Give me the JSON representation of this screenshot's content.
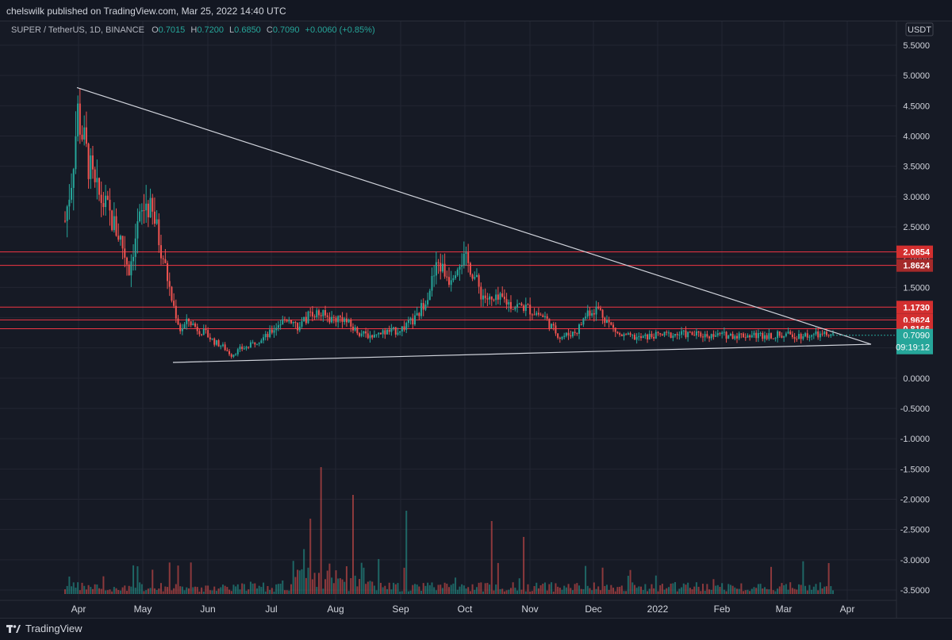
{
  "header": {
    "published": "chelswilk published on TradingView.com, Mar 25, 2022 14:40 UTC"
  },
  "legend": {
    "symbol": "SUPER / TetherUS, 1D, BINANCE",
    "o_label": "O",
    "o": "0.7015",
    "h_label": "H",
    "h": "0.7200",
    "l_label": "L",
    "l": "0.6850",
    "c_label": "C",
    "c": "0.7090",
    "change": "+0.0060 (+0.85%)"
  },
  "currency": "USDT",
  "colors": {
    "up": "#26a69a",
    "down": "#ef5350",
    "bg": "#161a25",
    "hline": "#f23645",
    "trend": "#d1d4dc"
  },
  "price_labels": [
    {
      "value": 2.0854,
      "text": "2.0854",
      "color": "#d32f2f"
    },
    {
      "value": 1.8624,
      "text": "1.8624",
      "color": "#a52a2a"
    },
    {
      "value": 1.173,
      "text": "1.1730",
      "color": "#d32f2f"
    },
    {
      "value": 0.9624,
      "text": "0.9624",
      "color": "#d32f2f"
    },
    {
      "value": 0.8166,
      "text": "0.8166",
      "color": "#d32f2f"
    }
  ],
  "last_price": {
    "value": 0.709,
    "text": "0.7090",
    "countdown": "09:19:12",
    "color": "#26a69a"
  },
  "chart_data": {
    "type": "candlestick",
    "title": "SUPER / TetherUS, 1D, BINANCE",
    "y_ticks": [
      "5.5000",
      "5.0000",
      "4.5000",
      "4.0000",
      "3.5000",
      "3.0000",
      "2.5000",
      "2.0000",
      "1.5000",
      "1.0000",
      "0.5000",
      "0.0000",
      "-0.5000",
      "-1.0000",
      "-1.5000",
      "-2.0000",
      "-2.5000",
      "-3.0000",
      "-3.5000"
    ],
    "ylim": [
      -3.6,
      5.8
    ],
    "x_ticks": [
      "Apr",
      "May",
      "Jun",
      "Jul",
      "Aug",
      "Sep",
      "Oct",
      "Nov",
      "Dec",
      "2022",
      "Feb",
      "Mar",
      "Apr"
    ],
    "horizontal_levels": [
      2.0854,
      1.8624,
      1.173,
      0.9624,
      0.8166
    ],
    "trendlines": [
      {
        "from": [
          "Apr",
          4.8
        ],
        "to": [
          "Mar end",
          0.56
        ]
      },
      {
        "from": [
          "May late",
          0.26
        ],
        "to": [
          "Mar end",
          0.56
        ]
      }
    ],
    "price_path_days": [
      0,
      3,
      6,
      10,
      14,
      18,
      22,
      26,
      30,
      34,
      38,
      42,
      46,
      50,
      54,
      58,
      62,
      66,
      70,
      74,
      78,
      82,
      86,
      90,
      95,
      100,
      105,
      110,
      115,
      120,
      125,
      130,
      135,
      140,
      145,
      150,
      155,
      160,
      165,
      170,
      175,
      180,
      185,
      190,
      195,
      200,
      205,
      210,
      215,
      220,
      225,
      228,
      232,
      236,
      240,
      245,
      250,
      255,
      260,
      265,
      270,
      275,
      280,
      285,
      290,
      295,
      300,
      305,
      310,
      315,
      320,
      325,
      330,
      335,
      340,
      345,
      350,
      355,
      360
    ],
    "price_path_values": [
      2.6,
      3.3,
      4.4,
      3.7,
      3.1,
      2.9,
      2.6,
      2.3,
      1.8,
      2.5,
      2.9,
      2.6,
      2.0,
      1.3,
      0.8,
      0.95,
      0.82,
      0.73,
      0.6,
      0.52,
      0.38,
      0.48,
      0.52,
      0.62,
      0.7,
      0.9,
      1.0,
      0.82,
      1.1,
      1.05,
      0.98,
      1.0,
      0.82,
      0.72,
      0.7,
      0.76,
      0.78,
      0.86,
      1.0,
      1.4,
      1.9,
      1.65,
      2.0,
      1.85,
      1.4,
      1.25,
      1.3,
      1.2,
      1.18,
      1.1,
      1.0,
      0.85,
      0.68,
      0.72,
      0.78,
      1.1,
      1.15,
      0.9,
      0.7,
      0.68,
      0.66,
      0.7,
      0.71,
      0.72,
      0.73,
      0.72,
      0.71,
      0.71,
      0.71,
      0.71,
      0.71,
      0.71,
      0.71,
      0.71,
      0.71,
      0.71,
      0.71,
      0.71,
      0.71
    ],
    "volume_scale_label": "volume"
  },
  "footer": {
    "brand": "TradingView"
  }
}
